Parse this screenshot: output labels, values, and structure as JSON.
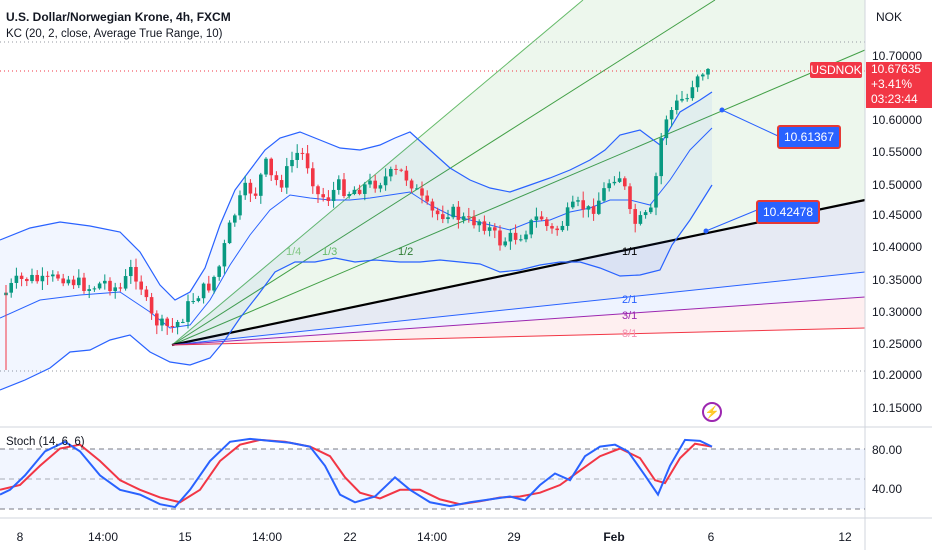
{
  "header": {
    "title": "U.S. Dollar/Norwegian Krone, 4h, FXCM",
    "indicator": "KC (20, 2, close, Average True Range, 10)",
    "currency": "NOK"
  },
  "price_scale": [
    "10.70000",
    "10.60000",
    "10.55000",
    "10.50000",
    "10.45000",
    "10.40000",
    "10.35000",
    "10.30000",
    "10.25000",
    "10.20000",
    "10.15000"
  ],
  "current_price": {
    "symbol": "USDNOK",
    "price": "10.67635",
    "change": "+3.41%",
    "countdown": "03:23:44"
  },
  "time_labels": [
    {
      "text": "8",
      "bold": false
    },
    {
      "text": "14:00",
      "bold": false
    },
    {
      "text": "15",
      "bold": false
    },
    {
      "text": "14:00",
      "bold": false
    },
    {
      "text": "22",
      "bold": false
    },
    {
      "text": "14:00",
      "bold": false
    },
    {
      "text": "29",
      "bold": false
    },
    {
      "text": "Feb",
      "bold": true
    },
    {
      "text": "6",
      "bold": false
    },
    {
      "text": "12",
      "bold": false
    }
  ],
  "callouts": [
    "10.61367",
    "10.42478"
  ],
  "fan_labels": [
    "1/4",
    "1/3",
    "1/2",
    "1/1",
    "2/1",
    "3/1",
    "8/1"
  ],
  "stoch": {
    "label": "Stoch (14, 6, 6)",
    "scale": [
      "80.00",
      "40.00"
    ]
  },
  "colors": {
    "up": "#089981",
    "down": "#f23645",
    "channel": "#2962ff",
    "stoch_k": "#2962ff",
    "stoch_d": "#f23645",
    "price_tag": "#f23645"
  },
  "icons": {
    "event": "lightning-icon"
  }
}
